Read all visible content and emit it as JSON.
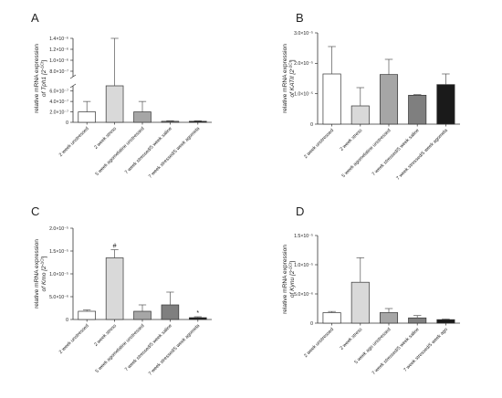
{
  "chart_data": [
    {
      "type": "bar",
      "panel": "A",
      "ylabel_line1": "relative mRNA expression",
      "ylabel_line2": "of Tph1 [2",
      "ylabel_sup": "-ΔCt",
      "ylabel_close": "]",
      "categories": [
        "2 week unstressed",
        "2 week stress",
        "5 week agomelatine unstressed",
        "7 week stressed/5 week saline",
        "7 week stressed/5 week agomela"
      ],
      "values": [
        2e-07,
        7e-07,
        2e-07,
        2e-08,
        2e-08
      ],
      "errors": [
        2e-07,
        7e-07,
        2e-07,
        1e-08,
        1e-08
      ],
      "fills": [
        "#ffffff",
        "#d9d9d9",
        "#a6a6a6",
        "#7f7f7f",
        "#1a1a1a"
      ],
      "axis_break": {
        "lower": [
          0,
          7e-07
        ],
        "upper": [
          7e-07,
          1.4e-06
        ]
      },
      "yticks_lower": [
        "0",
        "2.0×10⁻⁷",
        "4.0×10⁻⁷",
        "6.0×10⁻⁷"
      ],
      "yticks_upper": [
        "8.0×10⁻⁷",
        "1.0×10⁻⁶",
        "1.2×10⁻⁶",
        "1.4×10⁻⁶"
      ],
      "annotations": []
    },
    {
      "type": "bar",
      "panel": "B",
      "ylabel_line1": "relative mRNA expression",
      "ylabel_line2": "of KATII [2",
      "ylabel_sup": "-ΔCt",
      "ylabel_close": "]",
      "categories": [
        "2 week unstressed",
        "2 week stress",
        "5 week agomelatine unstressed",
        "7 week stressed/5 week saline",
        "7 week stressed/5 week agomela"
      ],
      "values": [
        1.65e-05,
        6e-06,
        1.63e-05,
        9.5e-06,
        1.3e-05
      ],
      "errors": [
        9e-06,
        6e-06,
        5e-06,
        2e-07,
        3.5e-06
      ],
      "fills": [
        "#ffffff",
        "#d9d9d9",
        "#a6a6a6",
        "#7f7f7f",
        "#1a1a1a"
      ],
      "ylim": [
        0,
        3e-05
      ],
      "yticks": [
        "0",
        "1.0×10⁻⁵",
        "2.0×10⁻⁵",
        "3.0×10⁻⁵"
      ],
      "annotations": []
    },
    {
      "type": "bar",
      "panel": "C",
      "ylabel_line1": "relative mRNA expression",
      "ylabel_line2": "of Kmo [2",
      "ylabel_sup": "-ΔCt",
      "ylabel_close": "]",
      "categories": [
        "2 week unstressed",
        "2 week stress",
        "5 week agomelatine unstressed",
        "7 week stressed/5 week saline",
        "7 week stressed/5 week agomela"
      ],
      "values": [
        1.8e-06,
        1.35e-05,
        1.8e-06,
        3.2e-06,
        4e-07
      ],
      "errors": [
        3e-07,
        1.8e-06,
        1.4e-06,
        2.8e-06,
        2e-07
      ],
      "fills": [
        "#ffffff",
        "#d9d9d9",
        "#a6a6a6",
        "#7f7f7f",
        "#1a1a1a"
      ],
      "ylim": [
        0,
        2e-05
      ],
      "yticks": [
        "0",
        "5.0×10⁻⁶",
        "1.0×10⁻⁵",
        "1.5×10⁻⁵",
        "2.0×10⁻⁵"
      ],
      "annotations": [
        "",
        "#",
        "",
        "",
        "*"
      ]
    },
    {
      "type": "bar",
      "panel": "D",
      "ylabel_line1": "relative mRNA expression",
      "ylabel_line2": "of Kynu [2",
      "ylabel_sup": "-ΔCt",
      "ylabel_close": "]",
      "categories": [
        "2 week unstressed",
        "2 week stress",
        "5 week ago unstressed",
        "7 week stressed/5 week saline",
        "7 week stressed/5 week ago"
      ],
      "values": [
        1.8e-06,
        7e-06,
        1.8e-06,
        9e-07,
        6e-07
      ],
      "errors": [
        2e-07,
        4.2e-06,
        7e-07,
        4e-07,
        1e-07
      ],
      "fills": [
        "#ffffff",
        "#d9d9d9",
        "#a6a6a6",
        "#7f7f7f",
        "#1a1a1a"
      ],
      "ylim": [
        0,
        1.5e-05
      ],
      "yticks": [
        "0",
        "5.0×10⁻⁶",
        "1.0×10⁻⁵",
        "1.5×10⁻⁵"
      ],
      "annotations": []
    }
  ]
}
